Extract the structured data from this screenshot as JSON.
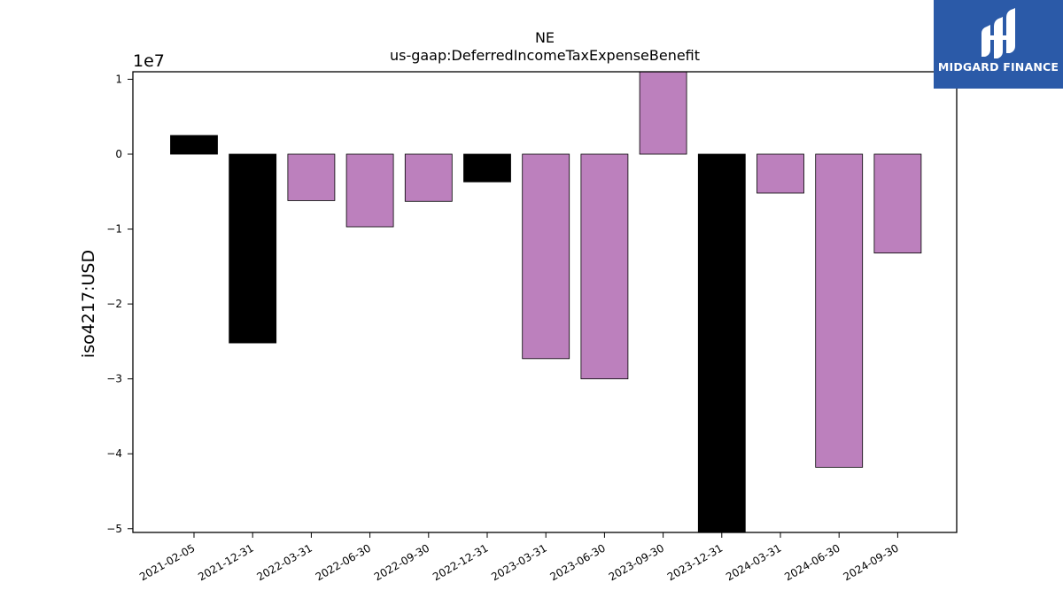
{
  "chart_data": {
    "type": "bar",
    "title": "NE",
    "subtitle": "us-gaap:DeferredIncomeTaxExpenseBenefit",
    "ylabel": "iso4217:USD",
    "xlabel": "",
    "y_offset_label": "1e7",
    "y_scale": 10000000,
    "ylim": [
      -50500000,
      11000000
    ],
    "yticks": [
      1,
      0,
      -1,
      -2,
      -3,
      -4,
      -5
    ],
    "grid": false,
    "categories": [
      "2021-02-05",
      "2021-12-31",
      "2022-03-31",
      "2022-06-30",
      "2022-09-30",
      "2022-12-31",
      "2023-03-31",
      "2023-06-30",
      "2023-09-30",
      "2023-12-31",
      "2024-03-31",
      "2024-06-30",
      "2024-09-30"
    ],
    "values": [
      2500000,
      -25200000,
      -6200000,
      -9700000,
      -6300000,
      -3700000,
      -27300000,
      -30000000,
      12000000,
      -51000000,
      -5200000,
      -41800000,
      -13200000
    ],
    "bar_colors": [
      "#000000",
      "#000000",
      "#bc80bd",
      "#bc80bd",
      "#bc80bd",
      "#000000",
      "#bc80bd",
      "#bc80bd",
      "#bc80bd",
      "#000000",
      "#bc80bd",
      "#bc80bd",
      "#bc80bd"
    ]
  },
  "logo": {
    "text": "MIDGARD FINANCE",
    "background": "#2b5aa8"
  }
}
